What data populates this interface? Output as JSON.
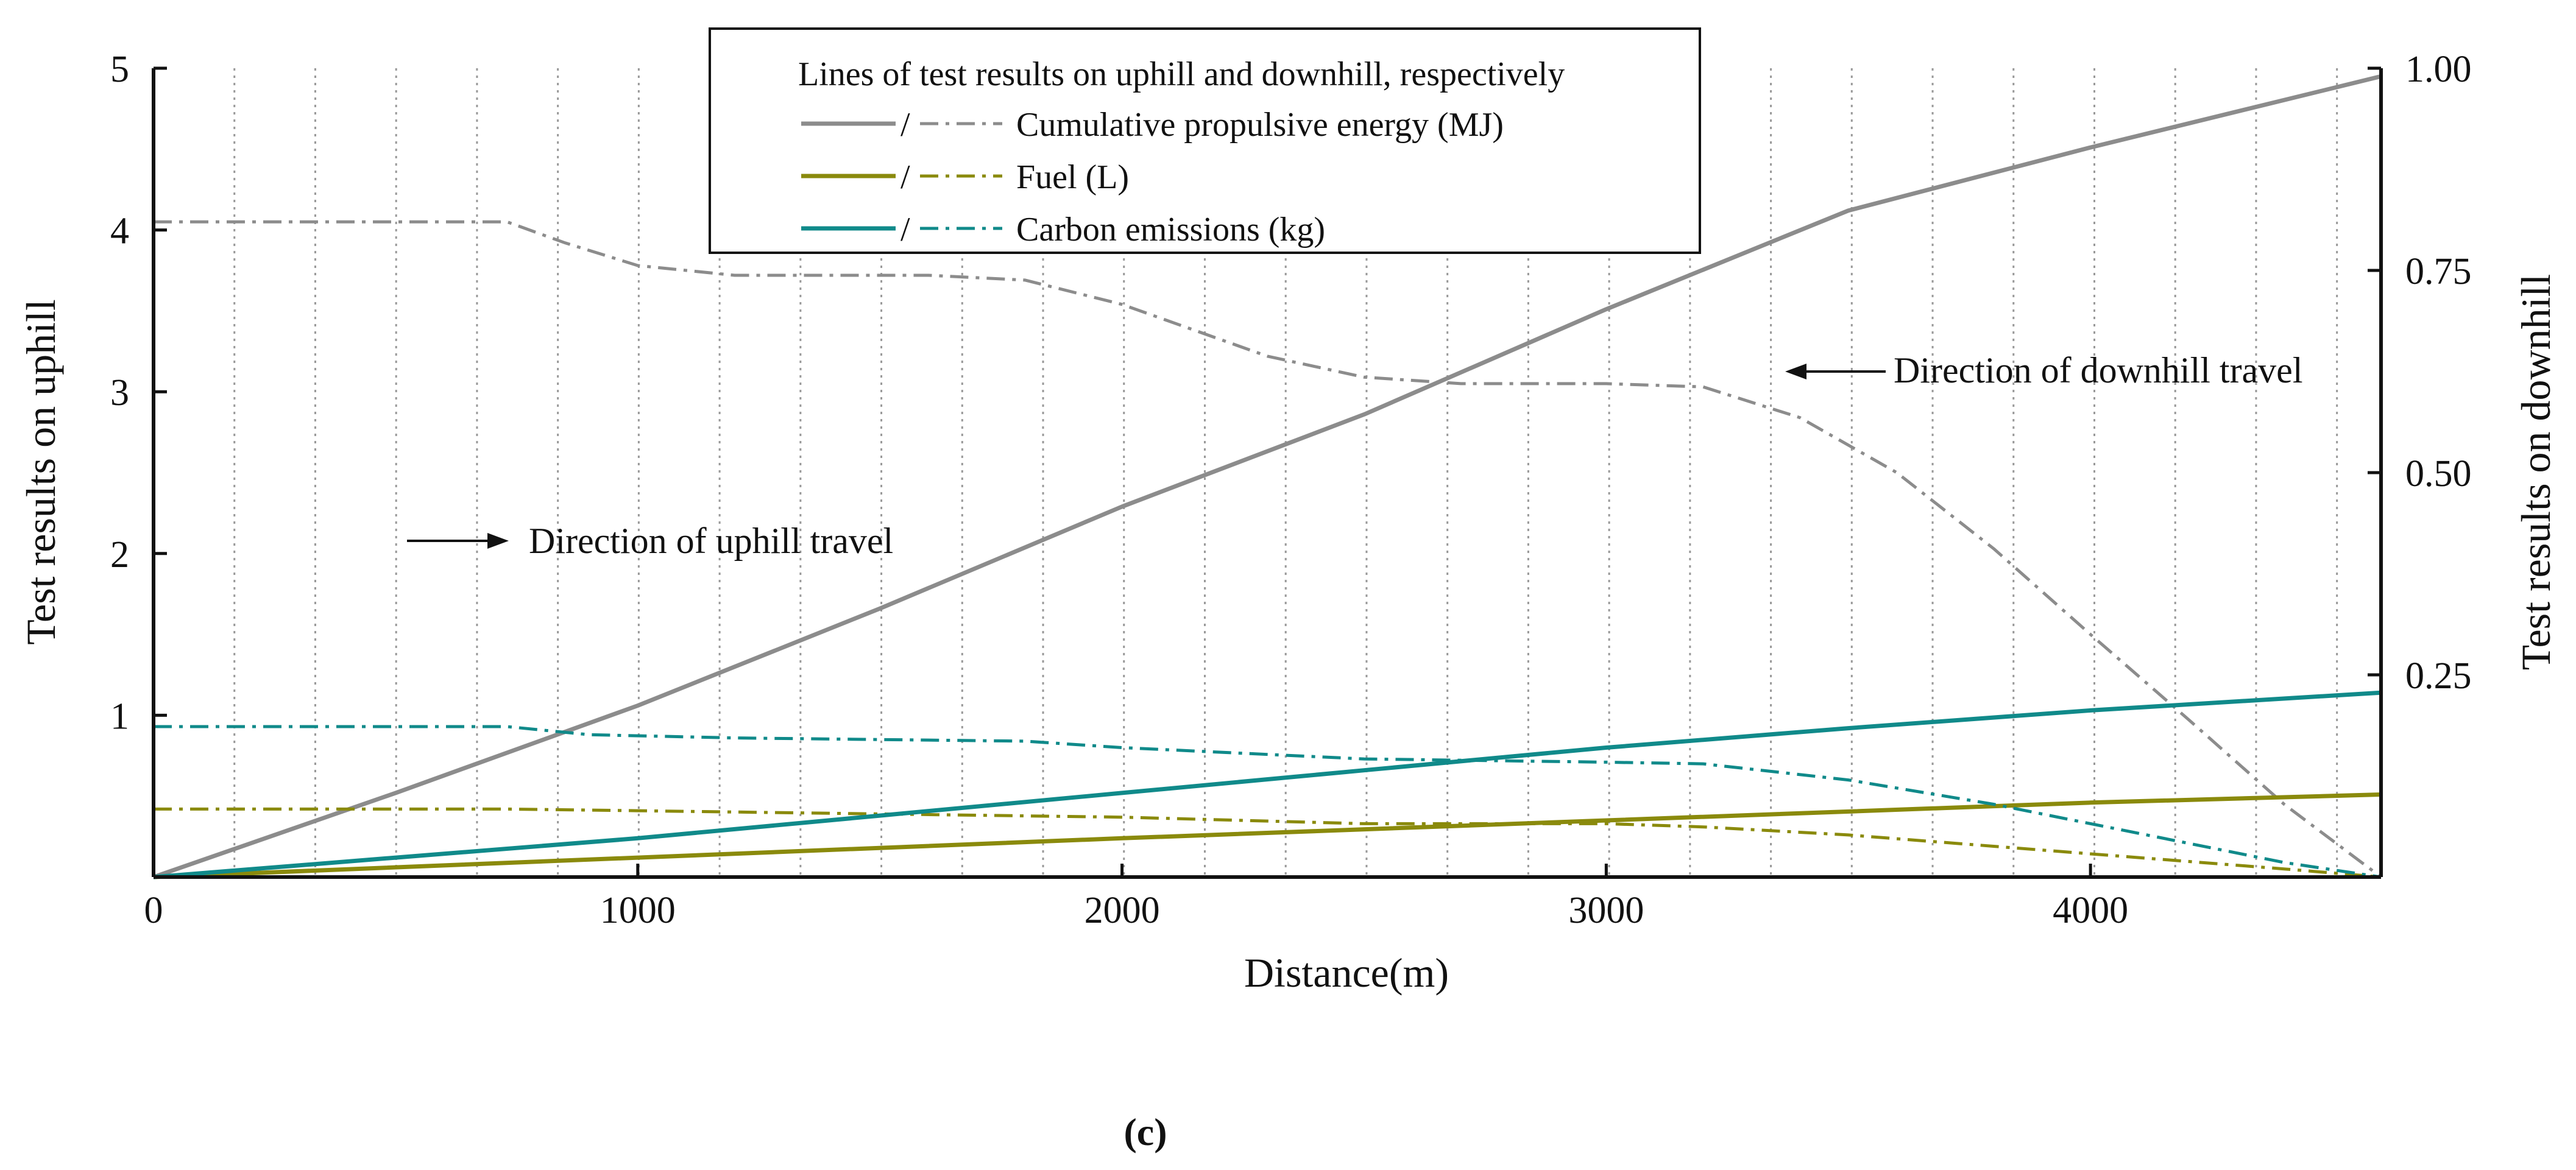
{
  "chart_data": {
    "type": "line",
    "xlabel": "Distance(m)",
    "ylabel_left": "Test results on uphill",
    "ylabel_right": "Test results on downhill",
    "xlim": [
      0,
      4600
    ],
    "ylim_left": [
      0,
      5
    ],
    "ylim_right": [
      0,
      1.0
    ],
    "x_ticks": [
      0,
      1000,
      2000,
      3000,
      4000
    ],
    "x_tick_labels": [
      "0",
      "1000",
      "2000",
      "3000",
      "4000"
    ],
    "y_left_ticks": [
      1,
      2,
      3,
      4,
      5
    ],
    "y_left_tick_labels": [
      "1",
      "2",
      "3",
      "4",
      "5"
    ],
    "y_right_ticks": [
      0.25,
      0.5,
      0.75,
      1.0
    ],
    "y_right_tick_labels": [
      "0.25",
      "0.50",
      "0.75",
      "1.00"
    ],
    "x_origin_label": "0",
    "vertical_gridlines": "dotted, every 167 m",
    "legend": {
      "title": "Lines of test results on uphill and downhill, respectively",
      "separator": "/",
      "entries": [
        {
          "label": "Cumulative propulsive energy (MJ)",
          "color": "#8c8c8c"
        },
        {
          "label": "Fuel (L)",
          "color": "#8a8a0c"
        },
        {
          "label": "Carbon emissions (kg)",
          "color": "#108a8a"
        }
      ],
      "placement": "top-center"
    },
    "annotations": [
      {
        "text": "Direction of uphill travel",
        "arrow": "right"
      },
      {
        "text": "Direction of  downhill travel",
        "arrow": "left"
      }
    ],
    "panel_label": "(c)",
    "series": [
      {
        "name": "Cumulative propulsive energy uphill (MJ)",
        "axis": "left",
        "style": "solid",
        "color": "#8c8c8c",
        "x": [
          0,
          500,
          1000,
          1500,
          2000,
          2500,
          3000,
          3500,
          4000,
          4600
        ],
        "y": [
          0,
          0.52,
          1.06,
          1.66,
          2.29,
          2.86,
          3.51,
          4.12,
          4.51,
          4.95
        ]
      },
      {
        "name": "Cumulative propulsive energy downhill (MJ)",
        "axis": "left",
        "style": "dashdot",
        "color": "#8c8c8c",
        "x": [
          0,
          400,
          730,
          850,
          1000,
          1200,
          1600,
          1800,
          2000,
          2300,
          2500,
          2700,
          3000,
          3200,
          3400,
          3600,
          3800,
          4000,
          4200,
          4400,
          4600
        ],
        "y": [
          4.05,
          4.05,
          4.05,
          3.92,
          3.78,
          3.72,
          3.72,
          3.69,
          3.54,
          3.22,
          3.09,
          3.05,
          3.05,
          3.03,
          2.84,
          2.5,
          2.03,
          1.5,
          0.98,
          0.45,
          0
        ]
      },
      {
        "name": "Fuel uphill (L)",
        "axis": "left",
        "style": "solid",
        "color": "#8a8a0c",
        "x": [
          0,
          1000,
          2000,
          3000,
          4000,
          4600
        ],
        "y": [
          0,
          0.12,
          0.24,
          0.35,
          0.46,
          0.51
        ]
      },
      {
        "name": "Fuel downhill (L)",
        "axis": "left",
        "style": "dashdot",
        "color": "#8a8a0c",
        "x": [
          0,
          730,
          1000,
          1500,
          2000,
          2500,
          3000,
          3200,
          3500,
          3800,
          4100,
          4400,
          4600
        ],
        "y": [
          0.42,
          0.42,
          0.41,
          0.39,
          0.37,
          0.33,
          0.33,
          0.31,
          0.26,
          0.19,
          0.12,
          0.05,
          0
        ]
      },
      {
        "name": "Carbon emissions uphill (kg)",
        "axis": "left",
        "style": "solid",
        "color": "#108a8a",
        "x": [
          0,
          500,
          1000,
          1500,
          2000,
          2500,
          3000,
          3500,
          4000,
          4600
        ],
        "y": [
          0,
          0.12,
          0.24,
          0.38,
          0.52,
          0.66,
          0.8,
          0.92,
          1.03,
          1.14
        ]
      },
      {
        "name": "Carbon emissions downhill (kg)",
        "axis": "left",
        "style": "dashdot",
        "color": "#108a8a",
        "x": [
          0,
          730,
          900,
          1200,
          1800,
          2000,
          2500,
          3000,
          3200,
          3500,
          3800,
          4100,
          4400,
          4600
        ],
        "y": [
          0.93,
          0.93,
          0.88,
          0.86,
          0.84,
          0.8,
          0.73,
          0.71,
          0.7,
          0.6,
          0.45,
          0.27,
          0.09,
          0
        ]
      }
    ]
  }
}
